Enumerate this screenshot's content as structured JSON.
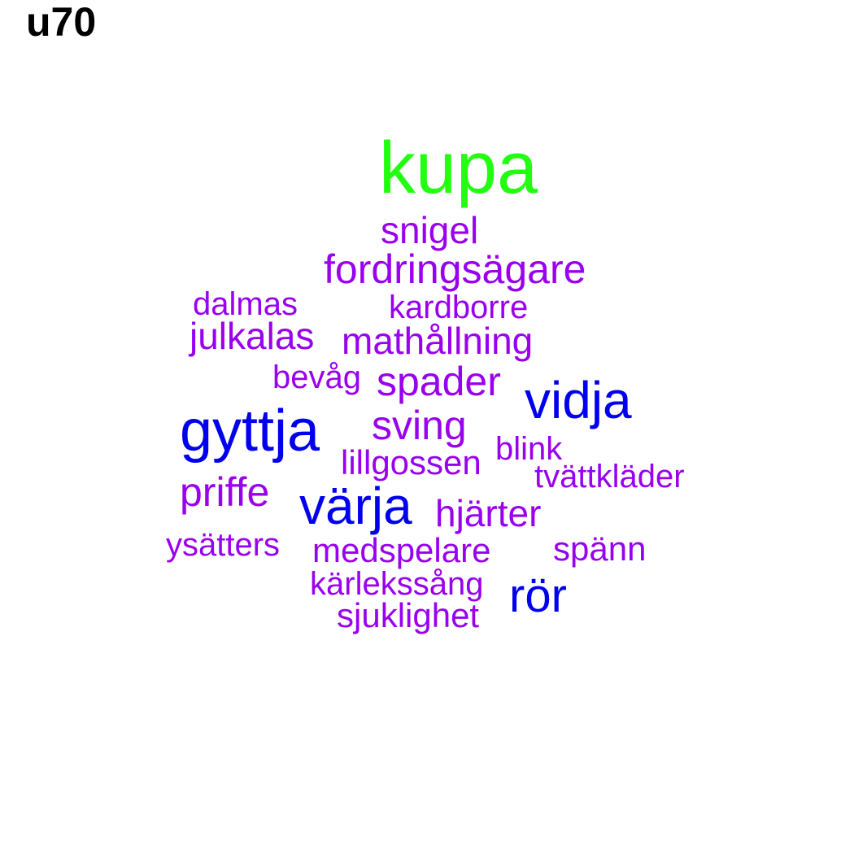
{
  "title": "u70",
  "colors": {
    "top": "#22ff11",
    "high": "#0000ee",
    "mid": "#9900ee"
  },
  "words": [
    {
      "text": "kupa",
      "tier": "top"
    },
    {
      "text": "snigel",
      "tier": "mid"
    },
    {
      "text": "fordringsägare",
      "tier": "mid"
    },
    {
      "text": "dalmas",
      "tier": "mid"
    },
    {
      "text": "kardborre",
      "tier": "mid"
    },
    {
      "text": "julkalas",
      "tier": "mid"
    },
    {
      "text": "mathållning",
      "tier": "mid"
    },
    {
      "text": "bevåg",
      "tier": "mid"
    },
    {
      "text": "spader",
      "tier": "mid"
    },
    {
      "text": "vidja",
      "tier": "high"
    },
    {
      "text": "gyttja",
      "tier": "high"
    },
    {
      "text": "sving",
      "tier": "mid"
    },
    {
      "text": "blink",
      "tier": "mid"
    },
    {
      "text": "lillgossen",
      "tier": "mid"
    },
    {
      "text": "tvättkläder",
      "tier": "mid"
    },
    {
      "text": "priffe",
      "tier": "mid"
    },
    {
      "text": "värja",
      "tier": "high"
    },
    {
      "text": "hjärter",
      "tier": "mid"
    },
    {
      "text": "ysätters",
      "tier": "mid"
    },
    {
      "text": "medspelare",
      "tier": "mid"
    },
    {
      "text": "spänn",
      "tier": "mid"
    },
    {
      "text": "kärlekssång",
      "tier": "mid"
    },
    {
      "text": "rör",
      "tier": "high"
    },
    {
      "text": "sjuklighet",
      "tier": "mid"
    }
  ]
}
